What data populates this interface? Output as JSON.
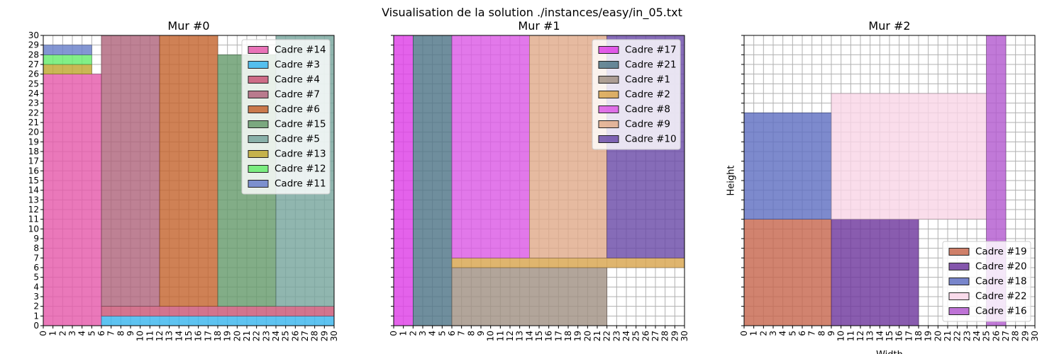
{
  "title": "Visualisation de la solution ./instances/easy/in_05.txt",
  "chart_data": [
    {
      "type": "rectangle-packing",
      "title": "Mur #0",
      "xlim": [
        0,
        30
      ],
      "ylim": [
        0,
        30
      ],
      "grid": true,
      "show_x_ticklabels": true,
      "show_y_ticklabels": true,
      "xlabel": "",
      "ylabel": "",
      "legend": {
        "position": "upper right",
        "entries": [
          "Cadre #14",
          "Cadre #3",
          "Cadre #4",
          "Cadre #7",
          "Cadre #6",
          "Cadre #15",
          "Cadre #5",
          "Cadre #13",
          "Cadre #12",
          "Cadre #11"
        ]
      },
      "rects": [
        {
          "label": "Cadre #14",
          "x": 0,
          "y": 0,
          "w": 6,
          "h": 26,
          "color": "#e55aab"
        },
        {
          "label": "Cadre #3",
          "x": 6,
          "y": 0,
          "w": 24,
          "h": 1,
          "color": "#3ab6ee"
        },
        {
          "label": "Cadre #4",
          "x": 6,
          "y": 1,
          "w": 24,
          "h": 1,
          "color": "#c95675"
        },
        {
          "label": "Cadre #7",
          "x": 6,
          "y": 2,
          "w": 6,
          "h": 28,
          "color": "#b0657c"
        },
        {
          "label": "Cadre #6",
          "x": 12,
          "y": 2,
          "w": 6,
          "h": 28,
          "color": "#c46530"
        },
        {
          "label": "Cadre #15",
          "x": 18,
          "y": 2,
          "w": 6,
          "h": 26,
          "color": "#679b6c"
        },
        {
          "label": "Cadre #5",
          "x": 24,
          "y": 2,
          "w": 6,
          "h": 28,
          "color": "#78a69e"
        },
        {
          "label": "Cadre #13",
          "x": 0,
          "y": 26,
          "w": 5,
          "h": 1,
          "color": "#bea730"
        },
        {
          "label": "Cadre #12",
          "x": 0,
          "y": 27,
          "w": 5,
          "h": 1,
          "color": "#67ec6d"
        },
        {
          "label": "Cadre #11",
          "x": 0,
          "y": 28,
          "w": 5,
          "h": 1,
          "color": "#687fc9"
        }
      ]
    },
    {
      "type": "rectangle-packing",
      "title": "Mur #1",
      "xlim": [
        0,
        30
      ],
      "ylim": [
        0,
        30
      ],
      "grid": true,
      "show_x_ticklabels": true,
      "show_y_ticklabels": false,
      "xlabel": "",
      "ylabel": "",
      "legend": {
        "position": "upper right",
        "entries": [
          "Cadre #17",
          "Cadre #21",
          "Cadre #1",
          "Cadre #2",
          "Cadre #8",
          "Cadre #9",
          "Cadre #10"
        ]
      },
      "rects": [
        {
          "label": "Cadre #17",
          "x": 0,
          "y": 0,
          "w": 2,
          "h": 30,
          "color": "#de3fe6"
        },
        {
          "label": "Cadre #21",
          "x": 2,
          "y": 0,
          "w": 4,
          "h": 30,
          "color": "#4f7587"
        },
        {
          "label": "Cadre #1",
          "x": 6,
          "y": 0,
          "w": 16,
          "h": 6,
          "color": "#a19184"
        },
        {
          "label": "Cadre #2",
          "x": 6,
          "y": 6,
          "w": 24,
          "h": 1,
          "color": "#d8a54e"
        },
        {
          "label": "Cadre #8",
          "x": 6,
          "y": 7,
          "w": 8,
          "h": 23,
          "color": "#dc5ae5"
        },
        {
          "label": "Cadre #9",
          "x": 14,
          "y": 7,
          "w": 8,
          "h": 23,
          "color": "#e0ab8b"
        },
        {
          "label": "Cadre #10",
          "x": 22,
          "y": 7,
          "w": 8,
          "h": 23,
          "color": "#6b4ca8"
        }
      ]
    },
    {
      "type": "rectangle-packing",
      "title": "Mur #2",
      "xlim": [
        0,
        30
      ],
      "ylim": [
        0,
        30
      ],
      "grid": true,
      "show_x_ticklabels": true,
      "show_y_ticklabels": false,
      "xlabel": "Width",
      "ylabel": "Height",
      "legend": {
        "position": "lower right",
        "entries": [
          "Cadre #19",
          "Cadre #20",
          "Cadre #18",
          "Cadre #22",
          "Cadre #16"
        ]
      },
      "rects": [
        {
          "label": "Cadre #19",
          "x": 0,
          "y": 0,
          "w": 9,
          "h": 11,
          "color": "#c7684f"
        },
        {
          "label": "Cadre #20",
          "x": 9,
          "y": 0,
          "w": 9,
          "h": 11,
          "color": "#6f389e"
        },
        {
          "label": "Cadre #18",
          "x": 0,
          "y": 11,
          "w": 9,
          "h": 11,
          "color": "#6070c2"
        },
        {
          "label": "Cadre #22",
          "x": 9,
          "y": 11,
          "w": 16,
          "h": 13,
          "color": "#f9d5e7"
        },
        {
          "label": "Cadre #16",
          "x": 25,
          "y": 0,
          "w": 2,
          "h": 30,
          "color": "#b35bcf"
        }
      ]
    }
  ]
}
